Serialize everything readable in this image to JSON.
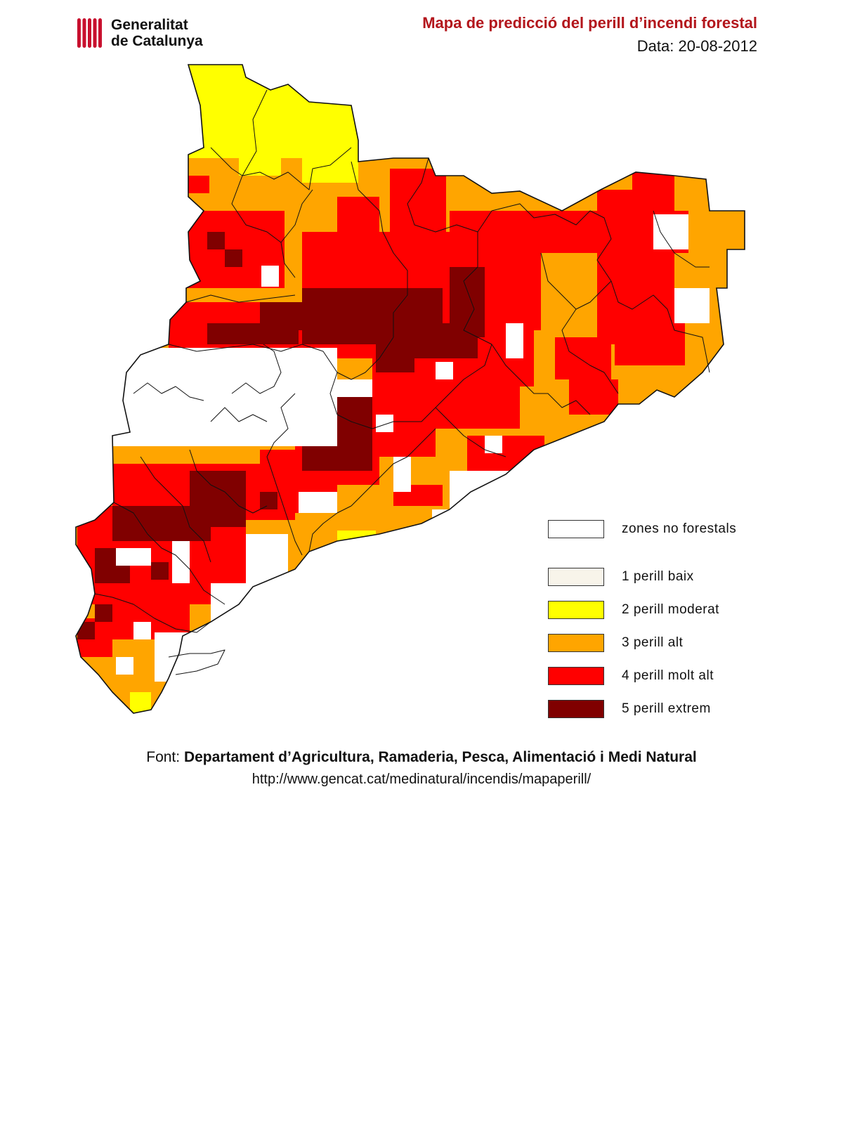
{
  "header": {
    "logo_line1": "Generalitat",
    "logo_line2": "de Catalunya",
    "title": "Mapa de predicció del perill d’incendi forestal",
    "date": "Data: 20-08-2012"
  },
  "legend": {
    "items": [
      {
        "label": "zones no forestals",
        "color": "#ffffff",
        "level": 0
      },
      {
        "label": "1  perill baix",
        "color": "#f8f4ea",
        "level": 1
      },
      {
        "label": "2  perill moderat",
        "color": "#ffff00",
        "level": 2
      },
      {
        "label": "3  perill alt",
        "color": "#ffa500",
        "level": 3
      },
      {
        "label": "4  perill molt alt",
        "color": "#ff0000",
        "level": 4
      },
      {
        "label": "5  perill extrem",
        "color": "#800000",
        "level": 5
      }
    ]
  },
  "source": {
    "prefix": "Font: ",
    "organization": "Departament d’Agricultura, Ramaderia, Pesca, Alimentació i Medi Natural",
    "url": "http://www.gencat.cat/medinatural/incendis/mapaperill/"
  },
  "colors": {
    "title": "#b3161c",
    "logo_red": "#c8102e",
    "outline": "#111111"
  }
}
